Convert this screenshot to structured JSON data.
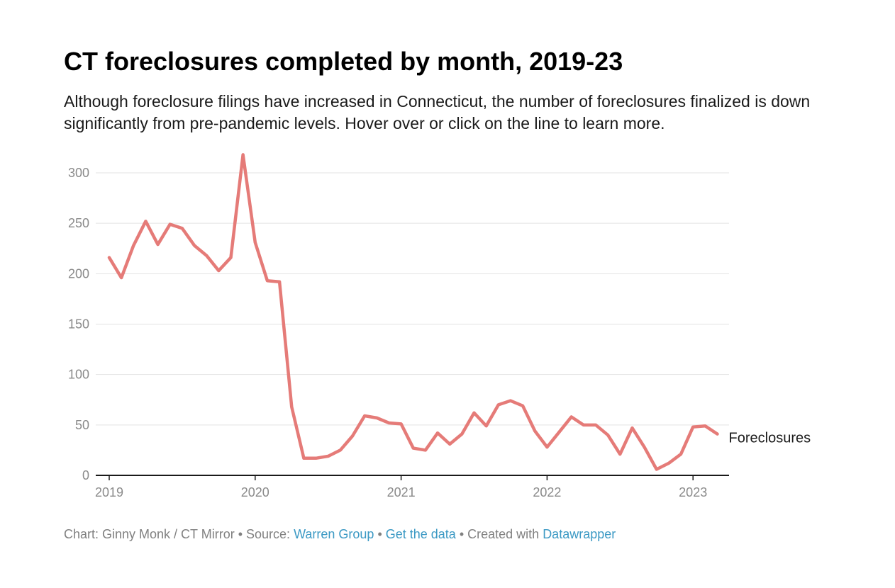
{
  "chart_data": {
    "type": "line",
    "title": "CT foreclosures completed by month, 2019-23",
    "subtitle": "Although foreclosure filings have increased in Connecticut, the number of foreclosures finalized is down significantly from pre-pandemic levels. Hover over or click on the line to learn more.",
    "xlabel": "",
    "ylabel": "",
    "ylim": [
      0,
      300
    ],
    "yticks": [
      0,
      50,
      100,
      150,
      200,
      250,
      300
    ],
    "ytick_labels": [
      "0",
      "50",
      "100",
      "150",
      "200",
      "250",
      "300"
    ],
    "xticks": [
      "2019",
      "2020",
      "2021",
      "2022",
      "2023"
    ],
    "grid": true,
    "line_color": "#e57b78",
    "x": [
      "2019-01",
      "2019-02",
      "2019-03",
      "2019-04",
      "2019-05",
      "2019-06",
      "2019-07",
      "2019-08",
      "2019-09",
      "2019-10",
      "2019-11",
      "2019-12",
      "2020-01",
      "2020-02",
      "2020-03",
      "2020-04",
      "2020-05",
      "2020-06",
      "2020-07",
      "2020-08",
      "2020-09",
      "2020-10",
      "2020-11",
      "2020-12",
      "2021-01",
      "2021-02",
      "2021-03",
      "2021-04",
      "2021-05",
      "2021-06",
      "2021-07",
      "2021-08",
      "2021-09",
      "2021-10",
      "2021-11",
      "2021-12",
      "2022-01",
      "2022-02",
      "2022-03",
      "2022-04",
      "2022-05",
      "2022-06",
      "2022-07",
      "2022-08",
      "2022-09",
      "2022-10",
      "2022-11",
      "2022-12",
      "2023-01",
      "2023-02",
      "2023-03"
    ],
    "series": [
      {
        "name": "Foreclosures",
        "values": [
          216,
          196,
          228,
          252,
          229,
          249,
          245,
          228,
          218,
          203,
          216,
          318,
          231,
          193,
          192,
          68,
          17,
          17,
          19,
          25,
          39,
          59,
          57,
          52,
          51,
          27,
          25,
          42,
          31,
          41,
          62,
          49,
          70,
          74,
          69,
          44,
          28,
          43,
          58,
          50,
          50,
          40,
          21,
          47,
          28,
          6,
          12,
          21,
          48,
          49,
          41
        ]
      }
    ]
  },
  "footer": {
    "credit": "Chart: Ginny Monk / CT Mirror • Source: ",
    "source_link": "Warren Group",
    "sep1": " • ",
    "data_link": "Get the data",
    "sep2": " • Created with ",
    "tool_link": "Datawrapper"
  }
}
